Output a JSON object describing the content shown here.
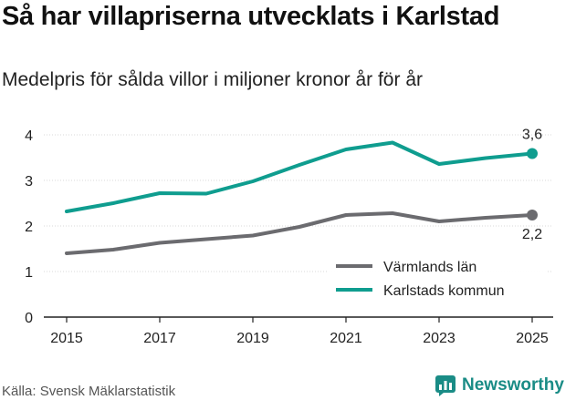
{
  "title": "Så har villapriserna utvecklats i Karlstad",
  "subtitle": "Medelpris för sålda villor i miljoner kronor år för år",
  "footer": {
    "source": "Källa: Svensk Mäklarstatistik",
    "brand": "Newsworthy"
  },
  "colors": {
    "gray_series": "#6b6b6f",
    "teal_series": "#0f9d8f",
    "axis": "#222222",
    "grid": "#d9d9d9",
    "brand": "#1a8c86"
  },
  "icons": {
    "brand_logo": "newsworthy-logo-icon"
  },
  "chart_data": {
    "type": "line",
    "title": "Så har villapriserna utvecklats i Karlstad",
    "subtitle": "Medelpris för sålda villor i miljoner kronor år för år",
    "xlabel": "",
    "ylabel": "",
    "x": [
      2015,
      2016,
      2017,
      2018,
      2019,
      2020,
      2021,
      2022,
      2023,
      2024,
      2025
    ],
    "xlim": [
      2015,
      2025
    ],
    "ylim": [
      0,
      4
    ],
    "x_ticks": [
      2015,
      2017,
      2019,
      2021,
      2023,
      2025
    ],
    "x_tick_labels": [
      "2015",
      "2017",
      "2019",
      "2021",
      "2023",
      "2025"
    ],
    "y_ticks": [
      0,
      1,
      2,
      3,
      4
    ],
    "y_tick_labels": [
      "0",
      "1",
      "2",
      "3",
      "4"
    ],
    "legend_position": "bottom-right",
    "series": [
      {
        "name": "Värmlands län",
        "color": "#6b6b6f",
        "values": [
          1.4,
          1.48,
          1.63,
          1.71,
          1.79,
          1.98,
          2.24,
          2.28,
          2.1,
          2.18,
          2.24
        ],
        "end_label": "2,2",
        "end_label_position": "below"
      },
      {
        "name": "Karlstads kommun",
        "color": "#0f9d8f",
        "values": [
          2.32,
          2.5,
          2.72,
          2.71,
          2.98,
          3.34,
          3.68,
          3.83,
          3.36,
          3.49,
          3.59
        ],
        "end_label": "3,6",
        "end_label_position": "above"
      }
    ]
  }
}
